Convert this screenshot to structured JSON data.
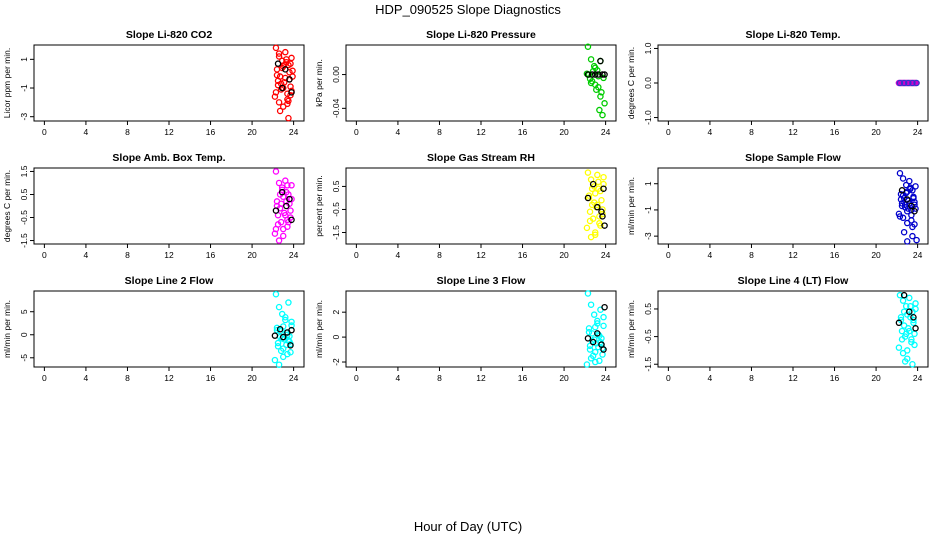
{
  "page": {
    "title": "HDP_090525  Slope Diagnostics",
    "xlabel": "Hour of Day (UTC)"
  },
  "chart_data": [
    {
      "type": "scatter",
      "title": "Slope Li-820 CO2",
      "ylabel": "Licor ppm per min.",
      "xlim": [
        -1,
        25
      ],
      "xticks": [
        0,
        4,
        8,
        12,
        16,
        20,
        24
      ],
      "ylim": [
        -3.3,
        2.0
      ],
      "yticks": [
        -3,
        -1,
        1
      ],
      "yticklabels": [
        "-3",
        "-1",
        "1"
      ],
      "color": "#ff0000",
      "series": [
        {
          "name": "main",
          "color": "#ff0000",
          "x": [
            22.3,
            22.6,
            22.9,
            23.2,
            23.5,
            23.8,
            22.4,
            22.7,
            23.0,
            23.3,
            23.6,
            23.9,
            22.5,
            22.8,
            23.1,
            23.4,
            23.7,
            22.2,
            22.6,
            23.0,
            23.4,
            23.8,
            22.4,
            22.9,
            23.3,
            23.7,
            22.5,
            23.0,
            23.5,
            22.7,
            23.2,
            23.6,
            22.3,
            22.8,
            23.4,
            23.9,
            22.6,
            23.1,
            23.7,
            23.5
          ],
          "y": [
            1.8,
            1.2,
            0.9,
            1.5,
            0.6,
            1.1,
            0.3,
            -0.2,
            0.5,
            0.8,
            -0.4,
            0.2,
            -0.8,
            -1.1,
            -0.6,
            -1.4,
            -0.9,
            -1.6,
            -2.0,
            -2.3,
            -1.8,
            -1.2,
            -0.1,
            0.4,
            1.0,
            0.7,
            -0.5,
            -1.0,
            -1.9,
            -2.6,
            -0.3,
            0.1,
            -1.3,
            -0.7,
            -2.1,
            -0.2,
            1.4,
            0.6,
            -1.5,
            -3.1
          ]
        },
        {
          "name": "highlighted",
          "color": "#000000",
          "x": [
            22.5,
            23.2,
            23.6,
            22.9,
            23.8
          ],
          "y": [
            0.7,
            0.3,
            -0.4,
            -1.0,
            -1.3
          ]
        }
      ]
    },
    {
      "type": "scatter",
      "title": "Slope Li-820 Pressure",
      "ylabel": "kPa per min.",
      "xlim": [
        -1,
        25
      ],
      "xticks": [
        0,
        4,
        8,
        12,
        16,
        20,
        24
      ],
      "ylim": [
        -0.055,
        0.035
      ],
      "yticks": [
        -0.04,
        0.0
      ],
      "yticklabels": [
        "-0.04",
        "0.00"
      ],
      "color": "#00cc00",
      "series": [
        {
          "name": "main",
          "color": "#00cc00",
          "x": [
            22.3,
            22.6,
            22.9,
            23.2,
            23.5,
            23.8,
            22.4,
            22.7,
            23.0,
            23.3,
            23.6,
            22.5,
            22.8,
            23.1,
            23.4,
            23.7,
            22.2,
            23.0,
            23.5,
            22.6,
            23.3,
            23.9
          ],
          "y": [
            0.033,
            0.018,
            0.01,
            0.005,
            0.016,
            -0.004,
            0.0,
            -0.008,
            -0.012,
            -0.015,
            -0.021,
            -0.005,
            0.004,
            -0.018,
            -0.042,
            -0.048,
            0.001,
            0.008,
            -0.026,
            -0.01,
            -0.002,
            -0.034
          ]
        },
        {
          "name": "highlighted",
          "color": "#000000",
          "x": [
            22.3,
            22.7,
            23.0,
            23.3,
            23.7,
            23.9,
            23.5
          ],
          "y": [
            0.0,
            0.0,
            0.0,
            0.0,
            0.0,
            0.0,
            0.016
          ]
        }
      ]
    },
    {
      "type": "scatter",
      "title": "Slope Li-820 Temp.",
      "ylabel": "degrees C per min.",
      "xlim": [
        -1,
        25
      ],
      "xticks": [
        0,
        4,
        8,
        12,
        16,
        20,
        24
      ],
      "ylim": [
        -1.1,
        1.1
      ],
      "yticks": [
        -1.0,
        0.0,
        1.0
      ],
      "yticklabels": [
        "-1.0",
        "0.0",
        "1.0"
      ],
      "color": "#cc00cc",
      "series": [
        {
          "name": "main",
          "color": "#cc00cc",
          "x": [
            22.2,
            22.4,
            22.6,
            22.8,
            23.0,
            23.2,
            23.4,
            23.6,
            23.8,
            22.5,
            22.9,
            23.3,
            23.7
          ],
          "y": [
            0,
            0,
            0,
            0,
            0,
            0,
            0,
            0,
            0,
            0,
            0,
            0,
            0
          ]
        },
        {
          "name": "highlighted",
          "color": "#3333cc",
          "x": [
            22.3,
            22.7,
            23.1,
            23.5,
            23.9
          ],
          "y": [
            0,
            0,
            0,
            0,
            0
          ]
        }
      ]
    },
    {
      "type": "scatter",
      "title": "Slope Amb. Box Temp.",
      "ylabel": "degrees C per min.",
      "xlim": [
        -1,
        25
      ],
      "xticks": [
        0,
        4,
        8,
        12,
        16,
        20,
        24
      ],
      "ylim": [
        -1.65,
        1.65
      ],
      "yticks": [
        -1.5,
        -0.5,
        0.5,
        1.5
      ],
      "yticklabels": [
        "-1.5",
        "-0.5",
        "0.5",
        "1.5"
      ],
      "color": "#ff00ff",
      "series": [
        {
          "name": "main",
          "color": "#ff00ff",
          "x": [
            22.3,
            22.6,
            22.9,
            23.2,
            23.5,
            23.8,
            22.4,
            22.7,
            23.0,
            23.3,
            23.6,
            22.5,
            22.8,
            23.1,
            23.4,
            23.7,
            22.2,
            22.6,
            23.0,
            23.4,
            23.8,
            22.4,
            22.9,
            23.3,
            23.7,
            22.5,
            23.0,
            23.5,
            22.7,
            23.2,
            23.6,
            22.3,
            22.8,
            23.4
          ],
          "y": [
            1.5,
            1.0,
            0.7,
            1.1,
            0.5,
            0.9,
            0.2,
            -0.1,
            0.4,
            0.6,
            0.1,
            -0.4,
            -0.7,
            -0.3,
            -0.9,
            -0.5,
            -1.2,
            -1.5,
            -1.0,
            -0.6,
            0.3,
            0.0,
            0.8,
            0.2,
            -0.2,
            -0.8,
            -1.3,
            -0.7,
            0.5,
            -0.4,
            0.3,
            -1.0,
            0.1,
            0.9
          ]
        },
        {
          "name": "highlighted",
          "color": "#000000",
          "x": [
            22.3,
            22.9,
            23.3,
            23.8,
            23.6
          ],
          "y": [
            -0.2,
            0.6,
            0.0,
            -0.6,
            0.3
          ]
        }
      ]
    },
    {
      "type": "scatter",
      "title": "Slope Gas Stream RH",
      "ylabel": "percent per min.",
      "xlim": [
        -1,
        25
      ],
      "xticks": [
        0,
        4,
        8,
        12,
        16,
        20,
        24
      ],
      "ylim": [
        -2.0,
        1.3
      ],
      "yticks": [
        -1.5,
        -0.5,
        0.5
      ],
      "yticklabels": [
        "-1.5",
        "-0.5",
        "0.5"
      ],
      "color": "#ffff00",
      "series": [
        {
          "name": "main",
          "color": "#ffff00",
          "x": [
            22.3,
            22.6,
            22.9,
            23.2,
            23.5,
            23.8,
            22.4,
            22.7,
            23.0,
            23.3,
            23.6,
            22.5,
            22.8,
            23.1,
            23.4,
            23.7,
            22.2,
            22.6,
            23.0,
            23.4,
            23.8,
            22.4,
            22.9,
            23.3,
            23.7,
            22.5,
            23.0,
            23.5,
            22.7,
            23.2
          ],
          "y": [
            1.1,
            0.8,
            0.5,
            1.0,
            0.3,
            0.6,
            0.0,
            -0.3,
            0.2,
            0.4,
            -0.1,
            -0.6,
            -0.9,
            -0.4,
            -1.1,
            -0.7,
            -1.3,
            -1.7,
            -1.5,
            -0.8,
            0.9,
            0.1,
            -0.2,
            0.7,
            -0.5,
            -1.0,
            -1.6,
            -1.2,
            0.4,
            -0.3
          ]
        },
        {
          "name": "highlighted",
          "color": "#000000",
          "x": [
            22.3,
            22.8,
            23.2,
            23.7,
            23.9,
            23.6,
            23.8
          ],
          "y": [
            0.0,
            0.6,
            -0.4,
            -0.8,
            -1.2,
            -0.6,
            0.4
          ]
        }
      ]
    },
    {
      "type": "scatter",
      "title": "Slope Sample Flow",
      "ylabel": "ml/min per min.",
      "xlim": [
        -1,
        25
      ],
      "xticks": [
        0,
        4,
        8,
        12,
        16,
        20,
        24
      ],
      "ylim": [
        -3.6,
        2.2
      ],
      "yticks": [
        -3,
        -1,
        1
      ],
      "yticklabels": [
        "-3",
        "-1",
        "1"
      ],
      "color": "#0000cc",
      "series": [
        {
          "name": "main",
          "color": "#0000cc",
          "x": [
            22.3,
            22.6,
            22.9,
            23.2,
            23.5,
            23.8,
            22.4,
            22.7,
            23.0,
            23.3,
            23.6,
            22.5,
            22.8,
            23.1,
            23.4,
            23.7,
            22.2,
            22.6,
            23.0,
            23.4,
            23.8,
            22.4,
            22.9,
            23.3,
            23.7,
            22.5,
            23.0,
            23.5,
            22.7,
            23.2,
            23.6,
            22.3,
            22.8,
            23.4,
            23.9,
            22.6,
            23.1,
            23.7,
            23.5,
            23.0
          ],
          "y": [
            1.8,
            1.4,
            0.9,
            1.2,
            0.5,
            0.8,
            0.2,
            -0.1,
            0.4,
            0.6,
            0.0,
            -0.5,
            -0.8,
            -0.3,
            -1.0,
            -0.6,
            -1.3,
            -1.6,
            -2.0,
            -1.4,
            -0.9,
            -0.2,
            0.3,
            0.7,
            -0.4,
            -0.7,
            -1.1,
            -2.3,
            -2.7,
            -0.5,
            -0.1,
            -1.5,
            -0.6,
            -1.8,
            -3.3,
            0.1,
            -0.9,
            -2.1,
            -3.0,
            -3.4
          ]
        },
        {
          "name": "highlighted",
          "color": "#000000",
          "x": [
            22.5,
            23.0,
            23.4,
            23.7
          ],
          "y": [
            0.5,
            -0.2,
            -0.7,
            -1.1
          ]
        }
      ]
    },
    {
      "type": "scatter",
      "title": "Slope Line 2 Flow",
      "ylabel": "ml/min per min.",
      "xlim": [
        -1,
        25
      ],
      "xticks": [
        0,
        4,
        8,
        12,
        16,
        20,
        24
      ],
      "ylim": [
        -7.0,
        9.5
      ],
      "yticks": [
        -5,
        0,
        5
      ],
      "yticklabels": [
        "-5",
        "0",
        "5"
      ],
      "color": "#00ffff",
      "series": [
        {
          "name": "main",
          "color": "#00ffff",
          "x": [
            22.3,
            22.6,
            22.9,
            23.2,
            23.5,
            23.8,
            22.4,
            22.7,
            23.0,
            23.3,
            23.6,
            22.5,
            22.8,
            23.1,
            23.4,
            23.7,
            22.2,
            22.6,
            23.0,
            23.4,
            23.8,
            22.4,
            22.9,
            23.3,
            23.7,
            22.5,
            23.0,
            23.5,
            22.7,
            23.2,
            23.6
          ],
          "y": [
            8.8,
            6.0,
            4.5,
            3.2,
            7.0,
            2.0,
            1.0,
            -0.5,
            1.8,
            0.5,
            -1.5,
            -2.5,
            -3.5,
            -1.0,
            -4.2,
            -2.0,
            -5.5,
            -6.5,
            -3.0,
            0.0,
            2.8,
            1.5,
            -0.8,
            -2.2,
            -3.8,
            -1.8,
            -4.8,
            -1.2,
            0.8,
            3.8,
            -0.3
          ]
        },
        {
          "name": "highlighted",
          "color": "#000000",
          "x": [
            22.2,
            22.7,
            23.0,
            23.4,
            23.7,
            23.8
          ],
          "y": [
            -0.2,
            1.2,
            -0.5,
            0.5,
            -2.3,
            1.0
          ]
        }
      ]
    },
    {
      "type": "scatter",
      "title": "Slope Line 3 Flow",
      "ylabel": "ml/min per min.",
      "xlim": [
        -1,
        25
      ],
      "xticks": [
        0,
        4,
        8,
        12,
        16,
        20,
        24
      ],
      "ylim": [
        -2.4,
        3.7
      ],
      "yticks": [
        -2,
        0,
        2
      ],
      "yticklabels": [
        "-2",
        "0",
        "2"
      ],
      "color": "#00ffff",
      "series": [
        {
          "name": "main",
          "color": "#00ffff",
          "x": [
            22.3,
            22.6,
            22.9,
            23.2,
            23.5,
            23.8,
            22.4,
            22.7,
            23.0,
            23.3,
            23.6,
            22.5,
            22.8,
            23.1,
            23.4,
            23.7,
            22.2,
            22.6,
            23.0,
            23.4,
            23.8,
            22.4,
            22.9,
            23.3,
            23.7,
            22.5,
            23.0,
            23.5,
            22.7,
            23.2,
            23.6
          ],
          "y": [
            3.5,
            2.6,
            1.8,
            1.3,
            2.2,
            0.9,
            0.4,
            -0.3,
            0.8,
            0.2,
            -0.6,
            -1.0,
            -1.5,
            -0.5,
            -1.9,
            -0.9,
            -2.2,
            -1.7,
            -1.2,
            0.1,
            1.6,
            0.7,
            -0.2,
            -0.8,
            -1.4,
            -0.7,
            -2.0,
            -0.4,
            0.3,
            1.1,
            -0.1
          ]
        },
        {
          "name": "highlighted",
          "color": "#000000",
          "x": [
            22.3,
            22.8,
            23.2,
            23.6,
            23.8,
            23.9
          ],
          "y": [
            -0.1,
            -0.4,
            0.3,
            -0.6,
            -1.0,
            2.4
          ]
        }
      ]
    },
    {
      "type": "scatter",
      "title": "Slope Line 4 (LT) Flow",
      "ylabel": "ml/min per min.",
      "xlim": [
        -1,
        25
      ],
      "xticks": [
        0,
        4,
        8,
        12,
        16,
        20,
        24
      ],
      "ylim": [
        -1.6,
        1.15
      ],
      "yticks": [
        -1.5,
        -0.5,
        0.5
      ],
      "yticklabels": [
        "-1.5",
        "-0.5",
        "0.5"
      ],
      "color": "#00ffff",
      "series": [
        {
          "name": "main",
          "color": "#00ffff",
          "x": [
            22.3,
            22.6,
            22.9,
            23.2,
            23.5,
            23.8,
            22.4,
            22.7,
            23.0,
            23.3,
            23.6,
            22.5,
            22.8,
            23.1,
            23.4,
            23.7,
            22.2,
            22.6,
            23.0,
            23.4,
            23.8,
            22.4,
            22.9,
            23.3,
            23.7,
            22.5,
            23.0,
            23.5,
            22.7,
            23.2,
            23.6,
            22.8
          ],
          "y": [
            1.0,
            0.8,
            0.6,
            0.9,
            0.4,
            0.5,
            0.2,
            -0.1,
            0.3,
            0.6,
            0.0,
            -0.3,
            -0.5,
            -0.2,
            -0.7,
            -0.4,
            -0.9,
            -1.1,
            -1.3,
            -0.6,
            0.7,
            0.1,
            -0.4,
            0.2,
            -0.8,
            -0.6,
            -1.0,
            -1.5,
            0.4,
            -0.3,
            0.1,
            -1.4
          ]
        },
        {
          "name": "highlighted",
          "color": "#000000",
          "x": [
            22.2,
            22.7,
            23.2,
            23.6,
            23.8
          ],
          "y": [
            0.0,
            1.0,
            0.4,
            0.2,
            -0.2
          ]
        }
      ]
    }
  ]
}
